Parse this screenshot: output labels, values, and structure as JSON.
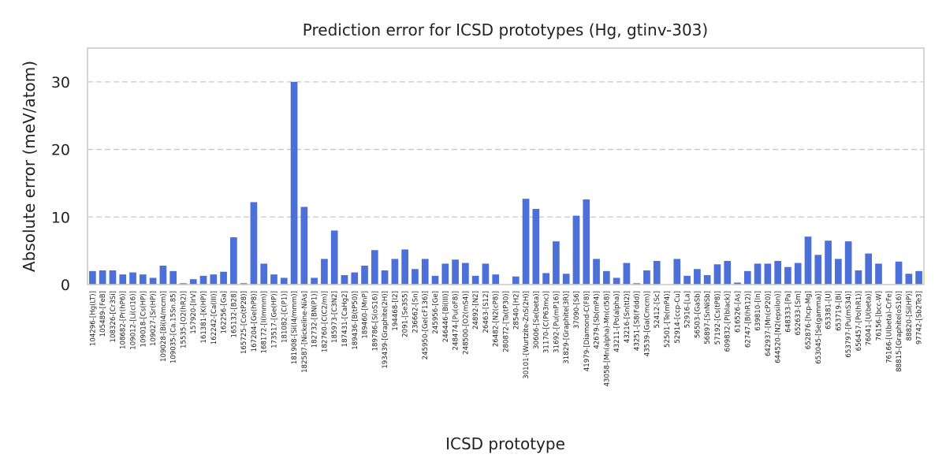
{
  "chart_data": {
    "type": "bar",
    "title": "Prediction error for ICSD prototypes (Hg, gtinv-303)",
    "xlabel": "ICSD prototype",
    "ylabel": "Absolute error (meV/atom)",
    "ylim": [
      0,
      35
    ],
    "yticks": [
      0,
      10,
      20,
      30
    ],
    "grid": "horizontal-dashed",
    "color": "#4c70d8",
    "categories": [
      "104296-[Hg(LT)]",
      "105489-[FeB]",
      "108326-[Cr3Si]",
      "108682-[Pr(hP6)]",
      "109012-[Li(cI16)]",
      "109018-[Cs(HP)]",
      "109027-[Sr(HP)]",
      "109028-[Bi(I4/mcm)]",
      "109035-[Ca.15Sn.85]",
      "15535-[O2(hR2)]",
      "157920-[IrV]",
      "161381-[K(HP)]",
      "162242-[Ca(III)]",
      "162256-[Ga]",
      "165132-[B28]",
      "165725-[Co(tP28)]",
      "167204-[Ge(hP8)]",
      "168172-[I(Immm)]",
      "173517-[Ge(HP)]",
      "181082-[C(P1)]",
      "181908-[Si(I4/mmm)]",
      "182587-[Nickeline-NiAs]",
      "182732-[BN(P1)]",
      "182760-[C(C2/m)]",
      "185973-[C3N2]",
      "187431-[CaHg2]",
      "189436-[B(tP50)]",
      "189460-[MnP]",
      "189786-[S(oS16)]",
      "193439-[Graphite(2H)]",
      "194468-[I2]",
      "2091-[Se3S5]",
      "236662-[Sn]",
      "245950-[Ge(cF136)]",
      "245956-[Ge]",
      "246446-[Bi(III)]",
      "248474-[Pu(oF8)]",
      "248500-[O2(mS4)]",
      "24892-[N2]",
      "26463-[S12]",
      "26482-[N2(cP8)]",
      "280872-[Ta(tP30)]",
      "28540-[H2]",
      "30101-[Wurtzite-ZnS(2H)]",
      "30606-[Se(beta)]",
      "31170-[C(P63mc)]",
      "31692-[Pu(mP16)]",
      "31829-[Graphite(3R)]",
      "37090-[S6]",
      "41979-[Diamond-C(F8)]",
      "42679-[Sb(mP4)]",
      "43058-[Mn(alpha)-Mn(cI58)]",
      "43211-[Po(alpha)]",
      "43216-[Sn(tI2)]",
      "43251-[S8(Fddd)]",
      "43539-[Ga(Cmcm)]",
      "52412-[Sc]",
      "52501-[Te(mP4)]",
      "52914-[ccp-Cu]",
      "52916-[La]",
      "56503-[GaSb]",
      "56897-[SnNiSb]",
      "57192-[Cs(tP8)]",
      "609832-[P(black)]",
      "616526-[As]",
      "62747-[B(hR12)]",
      "639810-[In]",
      "642937-[Mn(cP20)]",
      "644520-[N2(epsilon)]",
      "648333-[Pa]",
      "652633-[Sm]",
      "652876-[hcp-Mg]",
      "653045-[Se(gamma)]",
      "653381-[U]",
      "653719-[Bi]",
      "653797-[Pu(mS34)]",
      "656457-[Po(hR1)]",
      "76041-[U(beta)]",
      "76156-[bcc-W]",
      "76166-[U(beta)-CrFe]",
      "88815-[Graphite(oS16)]",
      "88820-[Si(HP)]",
      "97742-[Sb2Te3]"
    ],
    "values": [
      2.0,
      2.1,
      2.1,
      1.5,
      1.8,
      1.5,
      1.0,
      2.8,
      2.0,
      0.2,
      0.8,
      1.3,
      1.5,
      1.9,
      7.0,
      0.2,
      12.2,
      3.1,
      1.5,
      1.0,
      30.0,
      11.5,
      1.0,
      3.8,
      8.0,
      1.4,
      1.8,
      2.8,
      5.1,
      2.1,
      3.8,
      5.2,
      2.3,
      3.8,
      1.3,
      3.1,
      3.7,
      3.2,
      1.3,
      3.1,
      1.5,
      0.0,
      1.2,
      12.7,
      11.2,
      1.7,
      6.4,
      1.6,
      10.2,
      12.6,
      3.8,
      2.0,
      1.0,
      3.2,
      0.2,
      2.1,
      3.5,
      0.0,
      3.8,
      1.3,
      2.3,
      1.4,
      3.0,
      3.5,
      0.3,
      2.0,
      3.1,
      3.1,
      3.5,
      2.6,
      3.2,
      7.1,
      4.4,
      6.5,
      3.8,
      6.4,
      2.1,
      4.6,
      3.1,
      0.0,
      3.4,
      1.6,
      2.0
    ]
  }
}
